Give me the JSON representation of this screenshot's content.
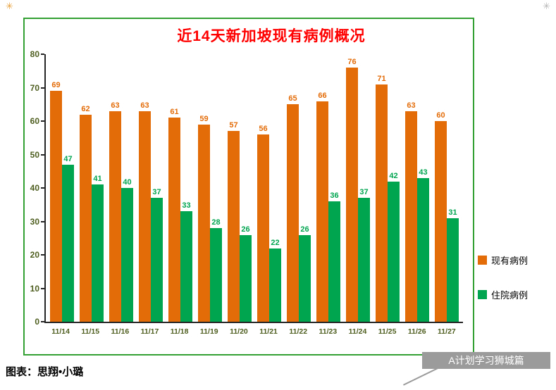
{
  "decor": {
    "top_left_icon": "✳",
    "top_right_icon": "✳"
  },
  "chart_data": {
    "type": "bar",
    "title": "近14天新加坡现有病例概况",
    "categories": [
      "11/14",
      "11/15",
      "11/16",
      "11/17",
      "11/18",
      "11/19",
      "11/20",
      "11/21",
      "11/22",
      "11/23",
      "11/24",
      "11/25",
      "11/26",
      "11/27"
    ],
    "series": [
      {
        "name": "现有病例",
        "color": "#E36C09",
        "values": [
          69,
          62,
          63,
          63,
          61,
          59,
          57,
          56,
          65,
          66,
          76,
          71,
          63,
          60
        ]
      },
      {
        "name": "住院病例",
        "color": "#00A550",
        "values": [
          47,
          41,
          40,
          37,
          33,
          28,
          26,
          22,
          26,
          36,
          37,
          42,
          43,
          31
        ]
      }
    ],
    "ylim": [
      0,
      80
    ],
    "ytick_step": 10,
    "grid": false,
    "legend_position": "right",
    "xlabel": "",
    "ylabel": ""
  },
  "legend": {
    "items": [
      {
        "label": "现有病例",
        "color": "#E36C09"
      },
      {
        "label": "住院病例",
        "color": "#00A550"
      }
    ]
  },
  "footer": {
    "credit": "图表：思翔•小璐"
  },
  "watermark": {
    "text": "A计划学习狮城篇"
  },
  "colors": {
    "title": "#FF0000",
    "frame_border": "#33A033",
    "axis_line": "#262626",
    "axis_label": "#4E5E1F",
    "watermark_bg": "#9B9B9B",
    "watermark_text": "#FFFFFF",
    "background": "#FFFFFF"
  }
}
